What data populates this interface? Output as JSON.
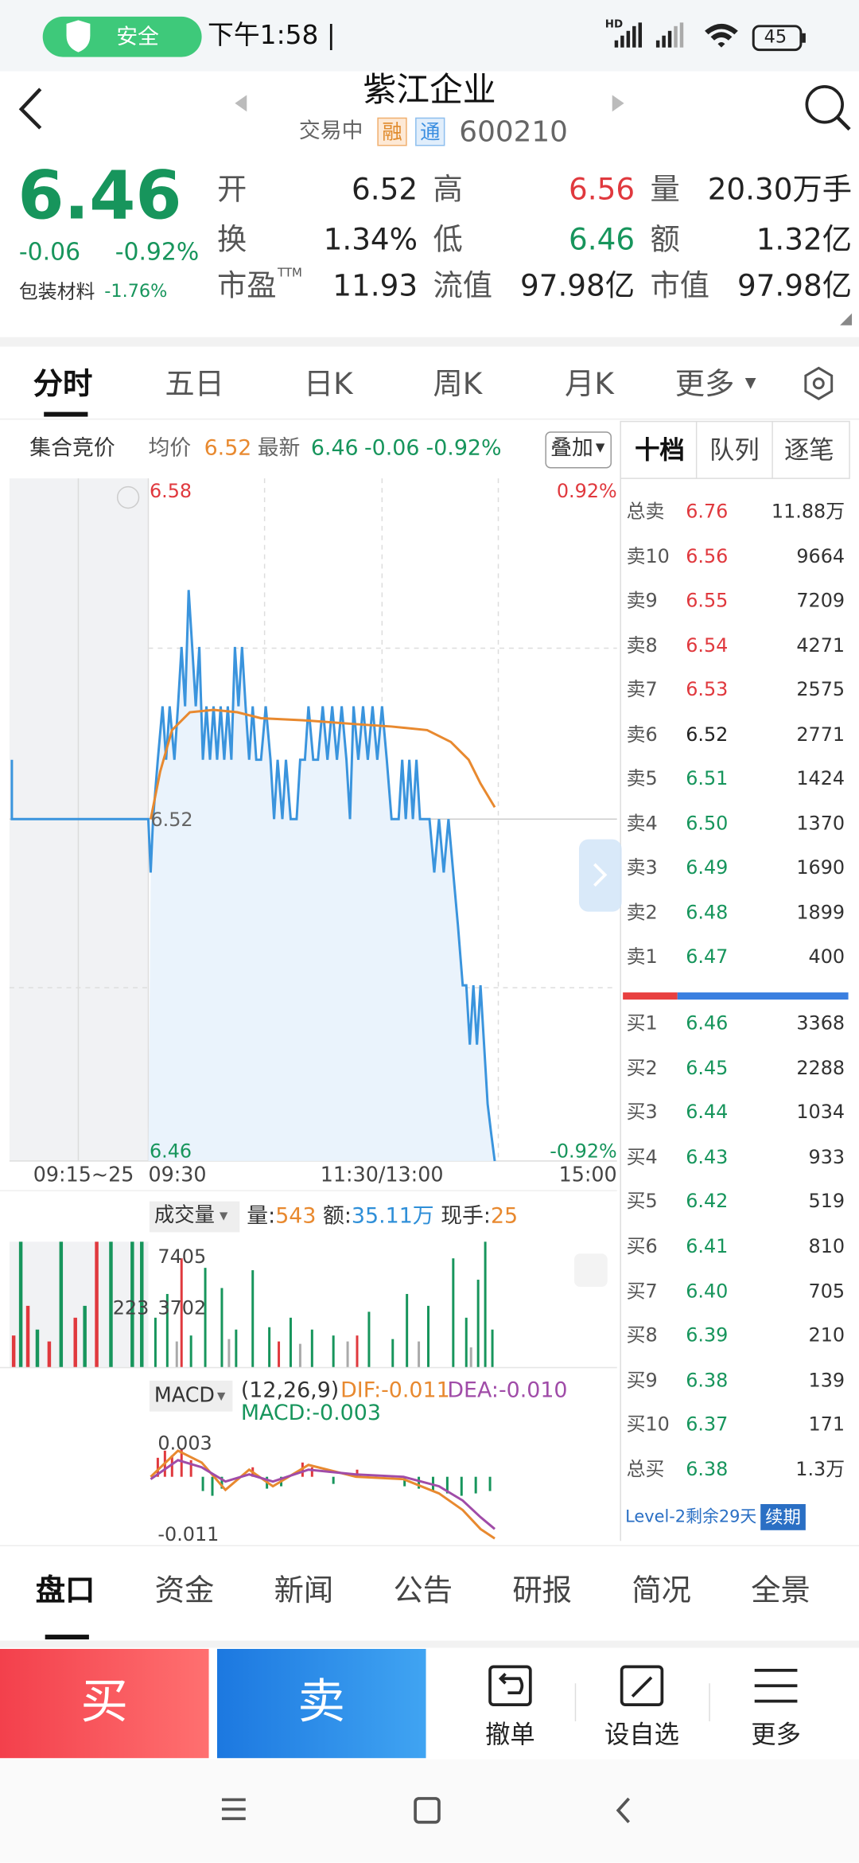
{
  "status_bar": {
    "badge": "安全",
    "time": "下午1:58 |",
    "hd": "HD",
    "battery": "45"
  },
  "header": {
    "title": "紫江企业",
    "status": "交易中",
    "tags": [
      "融",
      "通"
    ],
    "code": "600210"
  },
  "quote": {
    "price": "6.46",
    "change": "-0.06",
    "change_pct": "-0.92%",
    "sector": "包装材料",
    "sector_change": "-1.76%",
    "fields": [
      {
        "label": "开",
        "value": "6.52"
      },
      {
        "label": "高",
        "value": "6.56"
      },
      {
        "label": "量",
        "value": "20.30万手"
      },
      {
        "label": "换",
        "value": "1.34%"
      },
      {
        "label": "低",
        "value": "6.46"
      },
      {
        "label": "额",
        "value": "1.32亿"
      },
      {
        "label": "市盈",
        "sup": "TTM",
        "value": "11.93"
      },
      {
        "label": "流值",
        "value": "97.98亿"
      },
      {
        "label": "市值",
        "value": "97.98亿"
      }
    ]
  },
  "chart_tabs": [
    "分时",
    "五日",
    "日K",
    "周K",
    "月K",
    "更多"
  ],
  "info_bar": {
    "mode": "集合竞价",
    "avg_label": "均价",
    "avg": "6.52",
    "last_label": "最新",
    "last": "6.46",
    "change": "-0.06",
    "change_pct": "-0.92%",
    "overlay": "叠加"
  },
  "order_book": {
    "tabs": [
      "十档",
      "队列",
      "逐笔"
    ],
    "asks": [
      {
        "label": "总卖",
        "price": "6.76",
        "volume": "11.88万"
      },
      {
        "label": "卖10",
        "price": "6.56",
        "volume": "9664"
      },
      {
        "label": "卖9",
        "price": "6.55",
        "volume": "7209"
      },
      {
        "label": "卖8",
        "price": "6.54",
        "volume": "4271"
      },
      {
        "label": "卖7",
        "price": "6.53",
        "volume": "2575"
      },
      {
        "label": "卖6",
        "price": "6.52",
        "volume": "2771"
      },
      {
        "label": "卖5",
        "price": "6.51",
        "volume": "1424"
      },
      {
        "label": "卖4",
        "price": "6.50",
        "volume": "1370"
      },
      {
        "label": "卖3",
        "price": "6.49",
        "volume": "1690"
      },
      {
        "label": "卖2",
        "price": "6.48",
        "volume": "1899"
      },
      {
        "label": "卖1",
        "price": "6.47",
        "volume": "400"
      }
    ],
    "bids": [
      {
        "label": "买1",
        "price": "6.46",
        "volume": "3368"
      },
      {
        "label": "买2",
        "price": "6.45",
        "volume": "2288"
      },
      {
        "label": "买3",
        "price": "6.44",
        "volume": "1034"
      },
      {
        "label": "买4",
        "price": "6.43",
        "volume": "933"
      },
      {
        "label": "买5",
        "price": "6.42",
        "volume": "519"
      },
      {
        "label": "买6",
        "price": "6.41",
        "volume": "810"
      },
      {
        "label": "买7",
        "price": "6.40",
        "volume": "705"
      },
      {
        "label": "买8",
        "price": "6.39",
        "volume": "210"
      },
      {
        "label": "买9",
        "price": "6.38",
        "volume": "139"
      },
      {
        "label": "买10",
        "price": "6.37",
        "volume": "171"
      },
      {
        "label": "总买",
        "price": "6.38",
        "volume": "1.3万"
      }
    ],
    "level2": "Level-2剩余29天",
    "renew": "续期"
  },
  "intraday": {
    "top_price": "6.58",
    "top_pct": "0.92%",
    "mid_price": "6.52",
    "bottom_price": "6.46",
    "bottom_pct": "-0.92%",
    "times": [
      "09:15~25",
      "09:30",
      "11:30/13:00",
      "15:00"
    ]
  },
  "volume": {
    "button": "成交量",
    "items": [
      {
        "label": "量:",
        "value": "543"
      },
      {
        "label": "额:",
        "value": "35.11万"
      },
      {
        "label": "现手:",
        "value": "25"
      }
    ],
    "max": "7405",
    "mid": "3702",
    "auction": "223"
  },
  "macd": {
    "button": "MACD",
    "params": "(12,26,9)",
    "dif": "DIF:-0.011",
    "dea": "DEA:-0.010",
    "macd": "MACD:-0.003",
    "top": "0.003",
    "bottom": "-0.011"
  },
  "bottom_tabs": [
    "盘口",
    "资金",
    "新闻",
    "公告",
    "研报",
    "简况",
    "全景"
  ],
  "actions": {
    "buy": "买",
    "sell": "卖",
    "items": [
      "撤单",
      "设自选",
      "更多"
    ]
  }
}
